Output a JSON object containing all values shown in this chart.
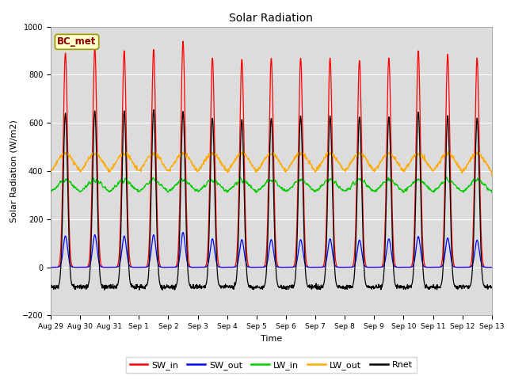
{
  "title": "Solar Radiation",
  "xlabel": "Time",
  "ylabel": "Solar Radiation (W/m2)",
  "ylim": [
    -200,
    1000
  ],
  "n_days": 15,
  "tick_labels": [
    "Aug 29",
    "Aug 30",
    "Aug 31",
    "Sep 1",
    "Sep 2",
    "Sep 3",
    "Sep 4",
    "Sep 5",
    "Sep 6",
    "Sep 7",
    "Sep 8",
    "Sep 9",
    "Sep 10",
    "Sep 11",
    "Sep 12",
    "Sep 13"
  ],
  "series_colors": {
    "SW_in": "#ff0000",
    "SW_out": "#0000ff",
    "LW_in": "#00cc00",
    "LW_out": "#ffaa00",
    "Rnet": "#000000"
  },
  "legend_label": "BC_met",
  "legend_bg": "#ffffcc",
  "legend_border": "#999900",
  "plot_bg": "#dcdcdc",
  "fig_bg": "#ffffff",
  "SW_in_peak": [
    890,
    910,
    900,
    905,
    940,
    870,
    865,
    870,
    870,
    870,
    860,
    870,
    900,
    885,
    870
  ],
  "SW_out_peak": [
    130,
    135,
    130,
    135,
    145,
    118,
    115,
    115,
    115,
    118,
    113,
    118,
    128,
    122,
    113
  ],
  "LW_in_night": 308,
  "LW_in_day_bump": 55,
  "LW_out_night": 378,
  "LW_out_day_bump": 95,
  "Rnet_peak": [
    640,
    650,
    650,
    655,
    648,
    620,
    615,
    620,
    630,
    630,
    625,
    625,
    645,
    630,
    620
  ],
  "Rnet_night": -82,
  "pts_per_day": 96
}
